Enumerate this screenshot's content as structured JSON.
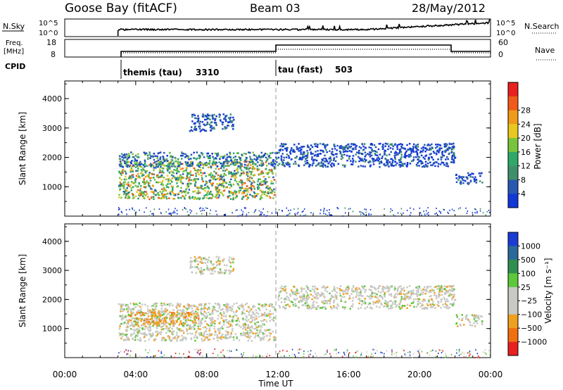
{
  "header": {
    "station": "Goose Bay (fitACF)",
    "beam": "Beam 03",
    "date": "28/May/2012"
  },
  "top_panels": {
    "nsky_label": "N.Sky",
    "nsky_tick_high": "10^5",
    "nsky_tick_low": "10^0",
    "nsearch_label": "N.Search",
    "nsearch_tick_high": "10^5",
    "nsearch_tick_low": "10^0",
    "freq_label": "Freq.",
    "freq_unit": "[MHz]",
    "freq_ticks": [
      "18",
      "8"
    ],
    "nave_label": "Nave",
    "nave_ticks": [
      "60",
      "0"
    ],
    "cpid_label": "CPID",
    "cpid_segments": [
      {
        "name": "themis (tau)",
        "id": "3310",
        "start_hour": 3.0
      },
      {
        "name": "tau (fast)",
        "id": "503",
        "start_hour": 12.0
      }
    ]
  },
  "chart_data": [
    {
      "type": "heatmap",
      "name": "power",
      "title": "",
      "xlabel": "Time UT",
      "ylabel": "Slant Range [km]",
      "xlim_hours": [
        0,
        24
      ],
      "xticks": [
        "00:00",
        "04:00",
        "08:00",
        "12:00",
        "16:00",
        "20:00",
        "00:00"
      ],
      "ylim": [
        0,
        4600
      ],
      "yticks": [
        1000,
        2000,
        3000,
        4000
      ],
      "colorbar": {
        "label": "Power [dB]",
        "ticks": [
          "4",
          "8",
          "12",
          "16",
          "20",
          "24",
          "28"
        ],
        "colors": [
          "#1238d8",
          "#2a58b0",
          "#3f8f6a",
          "#2fa86a",
          "#79c43a",
          "#e8c81f",
          "#f09a1a",
          "#f05a1a",
          "#e82020"
        ]
      },
      "regions": [
        {
          "t0": 3.0,
          "t1": 11.8,
          "r0": 600,
          "r1": 1900,
          "level": "high"
        },
        {
          "t0": 3.0,
          "t1": 12.0,
          "r0": 1700,
          "r1": 2200,
          "level": "mid"
        },
        {
          "t0": 12.0,
          "t1": 22.0,
          "r0": 1700,
          "r1": 2500,
          "level": "low"
        },
        {
          "t0": 22.0,
          "t1": 23.5,
          "r0": 1100,
          "r1": 1500,
          "level": "low"
        },
        {
          "t0": 7.0,
          "t1": 9.5,
          "r0": 2900,
          "r1": 3500,
          "level": "low"
        }
      ]
    },
    {
      "type": "heatmap",
      "name": "velocity",
      "title": "",
      "xlabel": "Time UT",
      "ylabel": "Slant Range [km]",
      "xlim_hours": [
        0,
        24
      ],
      "xticks": [
        "00:00",
        "04:00",
        "08:00",
        "12:00",
        "16:00",
        "20:00",
        "00:00"
      ],
      "ylim": [
        0,
        4600
      ],
      "yticks": [
        1000,
        2000,
        3000,
        4000
      ],
      "colorbar": {
        "label": "Velocity [m s⁻¹]",
        "ticks": [
          "1000",
          "500",
          "100",
          "25",
          "−25",
          "−100",
          "−500",
          "−1000"
        ],
        "colors": [
          "#1b3bd6",
          "#2a6a9a",
          "#2f8f50",
          "#5cc83a",
          "#c8c8c4",
          "#c8c8c4",
          "#f0a020",
          "#f07010",
          "#e82020"
        ]
      },
      "regions": [
        {
          "t0": 3.0,
          "t1": 11.8,
          "r0": 600,
          "r1": 1900,
          "level": "gray"
        },
        {
          "t0": 3.5,
          "t1": 7.5,
          "r0": 1100,
          "r1": 1600,
          "level": "negative"
        },
        {
          "t0": 12.0,
          "t1": 22.0,
          "r0": 1700,
          "r1": 2500,
          "level": "gray"
        },
        {
          "t0": 22.0,
          "t1": 23.5,
          "r0": 1100,
          "r1": 1500,
          "level": "gray"
        },
        {
          "t0": 7.0,
          "t1": 9.5,
          "r0": 2900,
          "r1": 3500,
          "level": "gray"
        }
      ]
    }
  ]
}
